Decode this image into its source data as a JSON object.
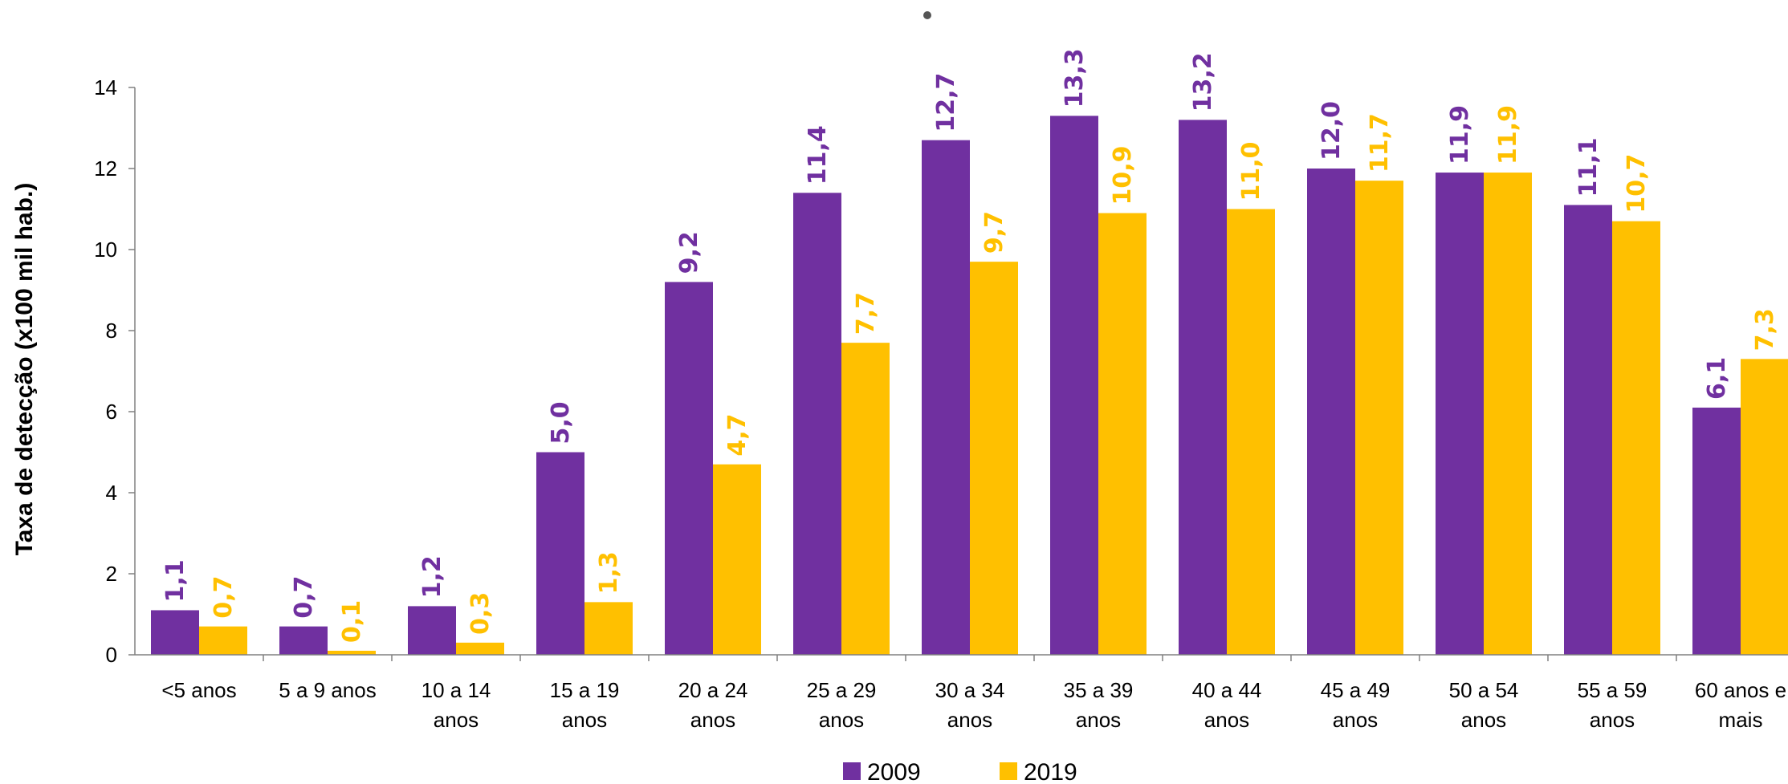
{
  "chart_data": {
    "type": "bar",
    "title": "",
    "xlabel": "",
    "ylabel": "Taxa de detecção (x100 mil hab.)",
    "ylim": [
      0,
      14
    ],
    "yticks": [
      0,
      2,
      4,
      6,
      8,
      10,
      12,
      14
    ],
    "grid": false,
    "legend_position": "bottom",
    "categories": [
      [
        "<5 anos"
      ],
      [
        "5 a 9 anos"
      ],
      [
        "10 a 14",
        "anos"
      ],
      [
        "15 a 19",
        "anos"
      ],
      [
        "20 a 24",
        "anos"
      ],
      [
        "25 a 29",
        "anos"
      ],
      [
        "30 a 34",
        "anos"
      ],
      [
        "35 a 39",
        "anos"
      ],
      [
        "40 a 44",
        "anos"
      ],
      [
        "45 a 49",
        "anos"
      ],
      [
        "50 a 54",
        "anos"
      ],
      [
        "55 a 59",
        "anos"
      ],
      [
        "60 anos e",
        "mais"
      ]
    ],
    "series": [
      {
        "name": "2009",
        "color": "#7030A0",
        "values": [
          1.1,
          0.7,
          1.2,
          5.0,
          9.2,
          11.4,
          12.7,
          13.3,
          13.2,
          12.0,
          11.9,
          11.1,
          6.1
        ],
        "labels": [
          "1,1",
          "0,7",
          "1,2",
          "5,0",
          "9,2",
          "11,4",
          "12,7",
          "13,3",
          "13,2",
          "12,0",
          "11,9",
          "11,1",
          "6,1"
        ]
      },
      {
        "name": "2019",
        "color": "#FFC000",
        "values": [
          0.7,
          0.1,
          0.3,
          1.3,
          4.7,
          7.7,
          9.7,
          10.9,
          11.0,
          11.7,
          11.9,
          10.7,
          7.3
        ],
        "labels": [
          "0,7",
          "0,1",
          "0,3",
          "1,3",
          "4,7",
          "7,7",
          "9,7",
          "10,9",
          "11,0",
          "11,7",
          "11,9",
          "10,7",
          "7,3"
        ]
      }
    ]
  }
}
